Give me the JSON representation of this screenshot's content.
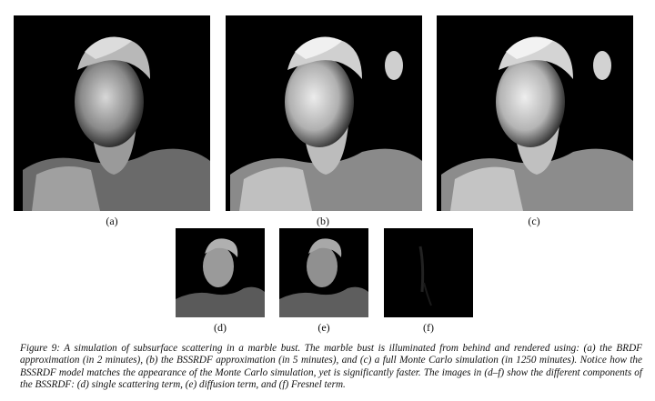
{
  "figure": {
    "panels": [
      {
        "id": "a",
        "label": "(a)"
      },
      {
        "id": "b",
        "label": "(b)"
      },
      {
        "id": "c",
        "label": "(c)"
      },
      {
        "id": "d",
        "label": "(d)"
      },
      {
        "id": "e",
        "label": "(e)"
      },
      {
        "id": "f",
        "label": "(f)"
      }
    ],
    "caption": "Figure 9: A simulation of subsurface scattering in a marble bust. The marble bust is illuminated from behind and rendered using: (a) the BRDF approximation (in 2 minutes), (b) the BSSRDF approximation (in 5 minutes), and (c) a full Monte Carlo simulation (in 1250 minutes). Notice how the BSSRDF model matches the appearance of the Monte Carlo simulation, yet is significantly faster. The images in (d–f) show the different components of the BSSRDF: (d) single scattering term, (e) diffusion term, and (f) Fresnel term."
  }
}
